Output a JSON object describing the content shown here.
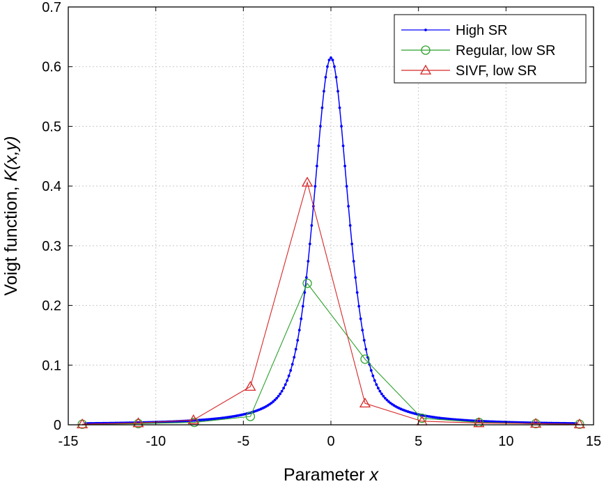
{
  "chart_data": {
    "type": "line",
    "xlabel_prefix": "Parameter ",
    "xlabel_var": "x",
    "ylabel_prefix": "Voigt function, ",
    "ylabel_var": "K(x,y)",
    "xlim": [
      -15,
      15
    ],
    "ylim": [
      0,
      0.7
    ],
    "xticks": [
      -15,
      -10,
      -5,
      0,
      5,
      10,
      15
    ],
    "xtick_labels": [
      "-15",
      "-10",
      "-5",
      "0",
      "5",
      "10",
      "15"
    ],
    "yticks": [
      0,
      0.1,
      0.2,
      0.3,
      0.4,
      0.5,
      0.6,
      0.7
    ],
    "ytick_labels": [
      "0",
      "0.1",
      "0.2",
      "0.3",
      "0.4",
      "0.5",
      "0.6",
      "0.7"
    ],
    "grid": true,
    "legend_position": "top-right",
    "series": [
      {
        "name": "High SR",
        "color": "#0000ff",
        "marker": "dot",
        "function": "voigt",
        "peak": 0.615,
        "x_range": [
          -14,
          14
        ],
        "step": 0.1
      },
      {
        "name": "Regular, low SR",
        "color": "#2ca02c",
        "marker": "circle",
        "points": [
          [
            -14.2,
            0.001
          ],
          [
            -11.0,
            0.002
          ],
          [
            -7.8,
            0.004
          ],
          [
            -4.6,
            0.014
          ],
          [
            -1.35,
            0.237
          ],
          [
            1.95,
            0.11
          ],
          [
            5.2,
            0.011
          ],
          [
            8.45,
            0.004
          ],
          [
            11.7,
            0.002
          ],
          [
            14.2,
            0.001
          ]
        ]
      },
      {
        "name": "SIVF, low SR",
        "color": "#d62728",
        "marker": "triangle",
        "points": [
          [
            -14.2,
            0.001
          ],
          [
            -11.0,
            0.003
          ],
          [
            -7.85,
            0.008
          ],
          [
            -4.6,
            0.064
          ],
          [
            -1.35,
            0.406
          ],
          [
            1.95,
            0.036
          ],
          [
            5.2,
            0.006
          ],
          [
            8.45,
            0.003
          ],
          [
            11.7,
            0.002
          ],
          [
            14.2,
            0.001
          ]
        ]
      }
    ]
  }
}
